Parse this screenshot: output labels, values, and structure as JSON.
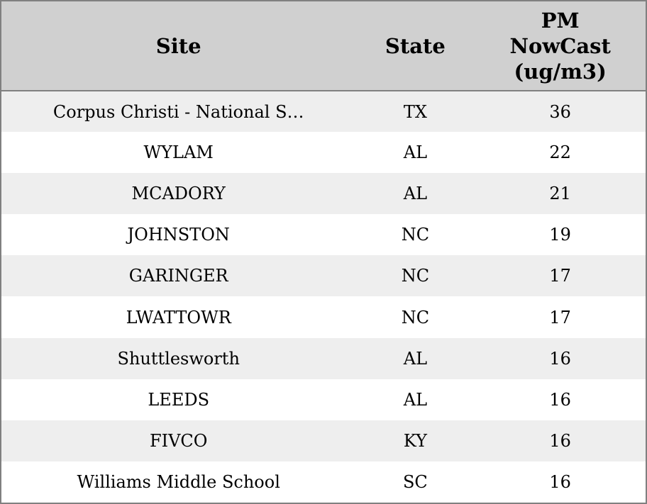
{
  "table": {
    "columns": [
      {
        "id": "site",
        "label": "Site"
      },
      {
        "id": "state",
        "label": "State"
      },
      {
        "id": "pm_nowcast",
        "label": "PM\nNowCast\n(ug/m3)"
      }
    ],
    "rows": [
      {
        "site": "Corpus Christi - National S…",
        "state": "TX",
        "pm_nowcast": "36"
      },
      {
        "site": "WYLAM",
        "state": "AL",
        "pm_nowcast": "22"
      },
      {
        "site": "MCADORY",
        "state": "AL",
        "pm_nowcast": "21"
      },
      {
        "site": "JOHNSTON",
        "state": "NC",
        "pm_nowcast": "19"
      },
      {
        "site": "GARINGER",
        "state": "NC",
        "pm_nowcast": "17"
      },
      {
        "site": "LWATTOWR",
        "state": "NC",
        "pm_nowcast": "17"
      },
      {
        "site": "Shuttlesworth",
        "state": "AL",
        "pm_nowcast": "16"
      },
      {
        "site": "LEEDS",
        "state": "AL",
        "pm_nowcast": "16"
      },
      {
        "site": "FIVCO",
        "state": "KY",
        "pm_nowcast": "16"
      },
      {
        "site": "Williams Middle School",
        "state": "SC",
        "pm_nowcast": "16"
      }
    ],
    "colors": {
      "header_bg": "#d0d0d0",
      "row_stripe_bg": "#eeeeee",
      "row_bg": "#ffffff",
      "border": "#808080",
      "text": "#000000"
    }
  }
}
